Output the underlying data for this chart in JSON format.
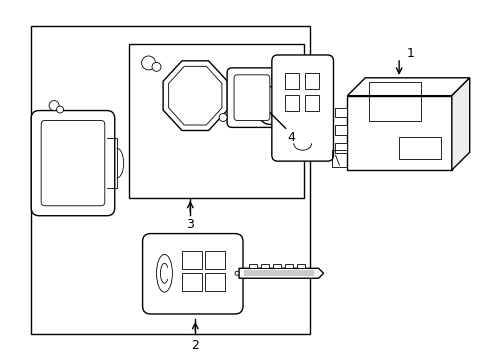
{
  "background_color": "#ffffff",
  "line_color": "#000000",
  "lw": 1.0,
  "tlw": 0.6,
  "fig_width": 4.89,
  "fig_height": 3.6,
  "dpi": 100
}
